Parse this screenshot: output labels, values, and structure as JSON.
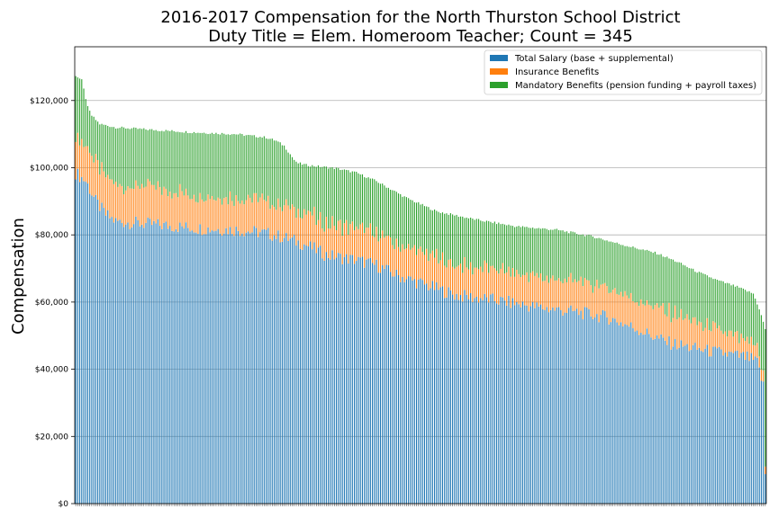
{
  "chart_data": {
    "type": "bar",
    "stacked": true,
    "title": "2016-2017 Compensation for the North Thurston School District",
    "subtitle": "Duty Title = Elem. Homeroom Teacher; Count = 345",
    "xlabel": "",
    "ylabel": "Compensation",
    "ylim": [
      0,
      136000
    ],
    "yticks": [
      0,
      20000,
      40000,
      60000,
      80000,
      100000,
      120000
    ],
    "ytick_labels": [
      "$0",
      "$20,000",
      "$40,000",
      "$60,000",
      "$80,000",
      "$100,000",
      "$120,000"
    ],
    "grid": "horizontal",
    "legend_position": "top-right",
    "count": 345,
    "sorted_by": "total descending",
    "total_profile": [
      [
        0,
        127500
      ],
      [
        3,
        126000
      ],
      [
        6,
        118000
      ],
      [
        8,
        115500
      ],
      [
        12,
        113000
      ],
      [
        20,
        112000
      ],
      [
        40,
        111200
      ],
      [
        60,
        110500
      ],
      [
        80,
        110000
      ],
      [
        95,
        109000
      ],
      [
        100,
        108000
      ],
      [
        104,
        106500
      ],
      [
        107,
        104000
      ],
      [
        110,
        101500
      ],
      [
        115,
        100800
      ],
      [
        130,
        99800
      ],
      [
        140,
        98500
      ],
      [
        150,
        96000
      ],
      [
        165,
        91000
      ],
      [
        180,
        87000
      ],
      [
        200,
        84500
      ],
      [
        220,
        82500
      ],
      [
        240,
        81500
      ],
      [
        258,
        79500
      ],
      [
        270,
        77500
      ],
      [
        290,
        74500
      ],
      [
        300,
        72000
      ],
      [
        310,
        69000
      ],
      [
        320,
        66500
      ],
      [
        330,
        64500
      ],
      [
        338,
        62500
      ],
      [
        341,
        58000
      ],
      [
        344,
        52000
      ]
    ],
    "series": [
      {
        "name": "Total Salary (base + supplemental)",
        "color": "#1f77b4",
        "profile": [
          [
            0,
            98500
          ],
          [
            5,
            96000
          ],
          [
            10,
            90000
          ],
          [
            15,
            86000
          ],
          [
            20,
            84000
          ],
          [
            40,
            83000
          ],
          [
            60,
            82000
          ],
          [
            80,
            81500
          ],
          [
            95,
            80500
          ],
          [
            105,
            79000
          ],
          [
            115,
            77000
          ],
          [
            125,
            74000
          ],
          [
            140,
            72500
          ],
          [
            150,
            71000
          ],
          [
            160,
            68000
          ],
          [
            175,
            65000
          ],
          [
            190,
            62000
          ],
          [
            210,
            60500
          ],
          [
            230,
            58500
          ],
          [
            250,
            57000
          ],
          [
            265,
            55500
          ],
          [
            280,
            52000
          ],
          [
            295,
            48000
          ],
          [
            310,
            46000
          ],
          [
            325,
            44500
          ],
          [
            335,
            43500
          ],
          [
            340,
            42000
          ],
          [
            343,
            35000
          ],
          [
            344,
            9000
          ]
        ]
      },
      {
        "name": "Insurance Benefits",
        "color": "#ff7f0e",
        "profile": [
          [
            0,
            11000
          ],
          [
            30,
            11000
          ],
          [
            100,
            9500
          ],
          [
            200,
            9000
          ],
          [
            300,
            9000
          ],
          [
            344,
            3000
          ]
        ]
      },
      {
        "name": "Mandatory Benefits (pension funding + payroll taxes)",
        "color": "#2ca02c",
        "profile": [
          [
            0,
            18000
          ],
          [
            344,
            8000
          ]
        ]
      }
    ]
  }
}
